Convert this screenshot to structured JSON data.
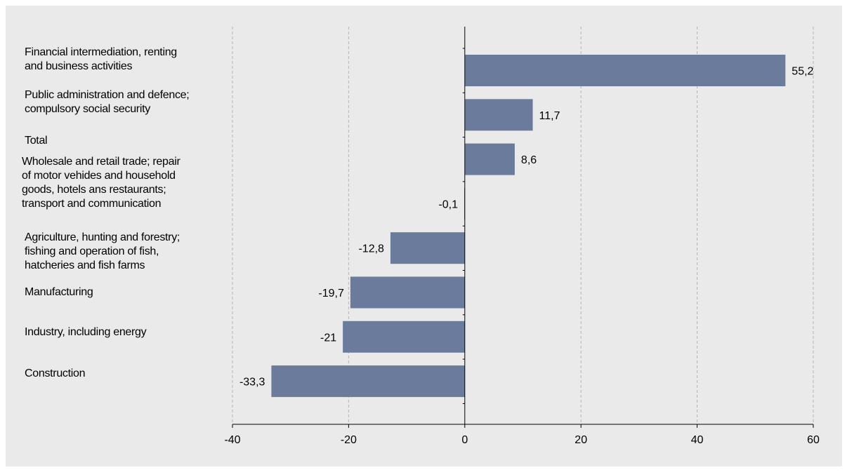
{
  "chart_data": {
    "type": "bar",
    "orientation": "horizontal",
    "categories": [
      "Financial intermediation, renting\nand business activities",
      "Public administration and defence;\ncompulsory social security",
      "Total",
      "Wholesale and retail trade; repair\nof motor vehides and household\ngoods, hotels ans restaurants;\ntransport and communication",
      "Agriculture, hunting and forestry;\nfishing and operation of fish,\nhatcheries and fish farms",
      "Manufacturing",
      "Industry, including energy",
      "Construction"
    ],
    "values": [
      55.2,
      11.7,
      8.6,
      -0.1,
      -12.8,
      -19.7,
      -21,
      -33.3
    ],
    "value_labels": [
      "55,2",
      "11,7",
      "8,6",
      "-0,1",
      "-12,8",
      "-19,7",
      "-21",
      "-33,3"
    ],
    "xlim": [
      -40,
      60
    ],
    "xticks": [
      -40,
      -20,
      0,
      20,
      40,
      60
    ],
    "xtick_labels": [
      "-40",
      "-20",
      "0",
      "20",
      "40",
      "60"
    ],
    "grid": "vertical dashed",
    "bar_color": "#6b7b9b",
    "background_color": "#eaeaea",
    "title": "",
    "xlabel": "",
    "ylabel": ""
  }
}
